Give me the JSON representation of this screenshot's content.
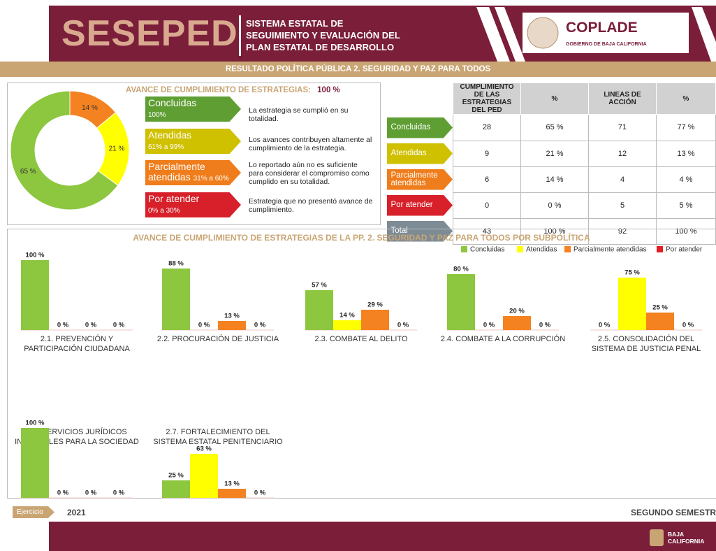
{
  "header": {
    "brand": "SESEPED",
    "subtitle_lines": [
      "SISTEMA ESTATAL DE",
      "SEGUIMIENTO Y EVALUACIÓN DEL",
      "PLAN ESTATAL DE DESARROLLO"
    ],
    "org": "COPLADE",
    "org_sub": "GOBIERNO DE BAJA CALIFORNIA",
    "banner": "RESULTADO POLÍTICA PÚBLICA 2. SEGURIDAD Y PAZ PARA TODOS"
  },
  "summary": {
    "heading": "AVANCE DE CUMPLIMIENTO DE ESTRATEGIAS:",
    "total": "100 %",
    "legend": [
      {
        "label_lines": [
          "Concluidas"
        ],
        "range": "100%",
        "description": "La estrategia se cumplió en su totalidad."
      },
      {
        "label_lines": [
          "Atendidas"
        ],
        "range": "61% a 99%",
        "description": "Los avances contribuyen altamente al cumplimiento de la estrategia."
      },
      {
        "label_lines": [
          "Parcialmente",
          "atendidas"
        ],
        "range": "31% a 60%",
        "description": "Lo reportado aún no es suficiente para considerar el compromiso como cumplido en su totalidad."
      },
      {
        "label_lines": [
          "Por atender"
        ],
        "range": "0% a 30%",
        "description": "Estrategia que no presentó avance de cumplimiento."
      }
    ]
  },
  "table": {
    "header": [
      "CUMPLIMIENTO DE LAS ESTRATEGIAS DEL PED",
      "%",
      "LINEAS DE ACCIÓN",
      "%"
    ],
    "rows": [
      [
        "Concluidas",
        "28",
        "65 %",
        "71",
        "77 %"
      ],
      [
        "Atendidas",
        "9",
        "21 %",
        "12",
        "13 %"
      ],
      [
        "Parcialmente atendidas",
        "6",
        "14 %",
        "4",
        "4 %"
      ],
      [
        "Por atender",
        "0",
        "0 %",
        "5",
        "5 %"
      ],
      [
        "Total",
        "43",
        "100 %",
        "92",
        "100 %"
      ]
    ]
  },
  "subpolicy": {
    "title": "AVANCE DE CUMPLIMIENTO DE ESTRATEGIAS DE LA PP. 2. SEGURIDAD Y PAZ PARA TODOS POR SUBPOLÍTICA",
    "legend": [
      {
        "name": "Concluidas",
        "color": "#8dc63f"
      },
      {
        "name": "Atendidas",
        "color": "#ffff00"
      },
      {
        "name": "Parcialmente atendidas",
        "color": "#f58220"
      },
      {
        "name": "Por atender",
        "color": "#e31e24"
      }
    ]
  },
  "chart_data": [
    {
      "type": "pie",
      "donut": true,
      "values": [
        65,
        21,
        14
      ],
      "value_labels": [
        "65 %",
        "21 %",
        "14 %"
      ],
      "colors": [
        "#8dc63f",
        "#ffff00",
        "#f58220"
      ]
    },
    {
      "type": "bar",
      "title_lines": [
        "2.1. PREVENCIÓN Y",
        "PARTICIPACIÓN CIUDADANA"
      ],
      "values": [
        100,
        0,
        0,
        0
      ],
      "value_labels": [
        "100 %",
        "0 %",
        "0 %",
        "0 %"
      ]
    },
    {
      "type": "bar",
      "title_lines": [
        "2.2. PROCURACIÓN DE JUSTICIA"
      ],
      "values": [
        88,
        0,
        13,
        0
      ],
      "value_labels": [
        "88 %",
        "0 %",
        "13 %",
        "0 %"
      ]
    },
    {
      "type": "bar",
      "title_lines": [
        "2.3. COMBATE AL DELITO"
      ],
      "values": [
        57,
        14,
        29,
        0
      ],
      "value_labels": [
        "57 %",
        "14 %",
        "29 %",
        "0 %"
      ]
    },
    {
      "type": "bar",
      "title_lines": [
        "2.4. COMBATE A LA CORRUPCIÓN"
      ],
      "values": [
        80,
        0,
        20,
        0
      ],
      "value_labels": [
        "80 %",
        "0 %",
        "20 %",
        "0 %"
      ]
    },
    {
      "type": "bar",
      "title_lines": [
        "2.5. CONSOLIDACIÓN DEL",
        "SISTEMA DE JUSTICIA PENAL"
      ],
      "values": [
        0,
        75,
        25,
        0
      ],
      "value_labels": [
        "0 %",
        "75 %",
        "25 %",
        "0 %"
      ]
    },
    {
      "type": "bar",
      "title_lines": [
        "2.6. SERVICIOS JURÍDICOS",
        "INTEGRALES PARA LA SOCIEDAD"
      ],
      "values": [
        100,
        0,
        0,
        0
      ],
      "value_labels": [
        "100 %",
        "0 %",
        "0 %",
        "0 %"
      ]
    },
    {
      "type": "bar",
      "title_lines": [
        "2.7. FORTALECIMIENTO DEL",
        "SISTEMA ESTATAL PENITENCIARIO"
      ],
      "values": [
        25,
        63,
        13,
        0
      ],
      "value_labels": [
        "25 %",
        "63 %",
        "13 %",
        "0 %"
      ]
    }
  ],
  "footer": {
    "label": "Ejercicio",
    "year": "2021",
    "period": "SEGUNDO SEMESTR",
    "state_lines": [
      "BAJA",
      "CALIFORNIA"
    ]
  }
}
